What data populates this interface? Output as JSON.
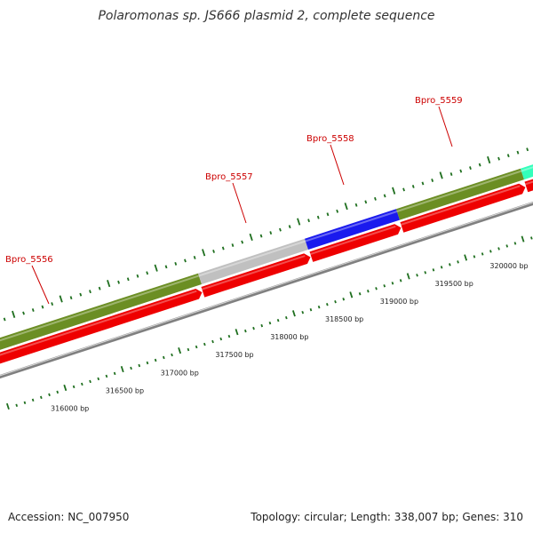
{
  "title": "Polaromonas sp. JS666 plasmid 2, complete sequence",
  "accession": "Accession: NC_007950",
  "summary": "Topology: circular; Length: 338,007 bp; Genes: 310",
  "colors": {
    "olive": "#6b8e23",
    "grey": "#c0c0c0",
    "blue": "#1a1aee",
    "aqua": "#33ffbb",
    "cds": "#ee0000",
    "backbone": "#808080",
    "tick": "#1f6f1f",
    "label": "#cc0000"
  },
  "genes": [
    {
      "name": "Bpro_5556",
      "color": "olive"
    },
    {
      "name": "Bpro_5557",
      "color": "grey"
    },
    {
      "name": "Bpro_5558",
      "color": "blue"
    },
    {
      "name": "Bpro_5559",
      "color": "olive"
    },
    {
      "name": "",
      "color": "aqua"
    }
  ],
  "bp_labels": [
    "316000 bp",
    "316500 bp",
    "317000 bp",
    "317500 bp",
    "318000 bp",
    "318500 bp",
    "319000 bp",
    "319500 bp",
    "320000 bp"
  ]
}
